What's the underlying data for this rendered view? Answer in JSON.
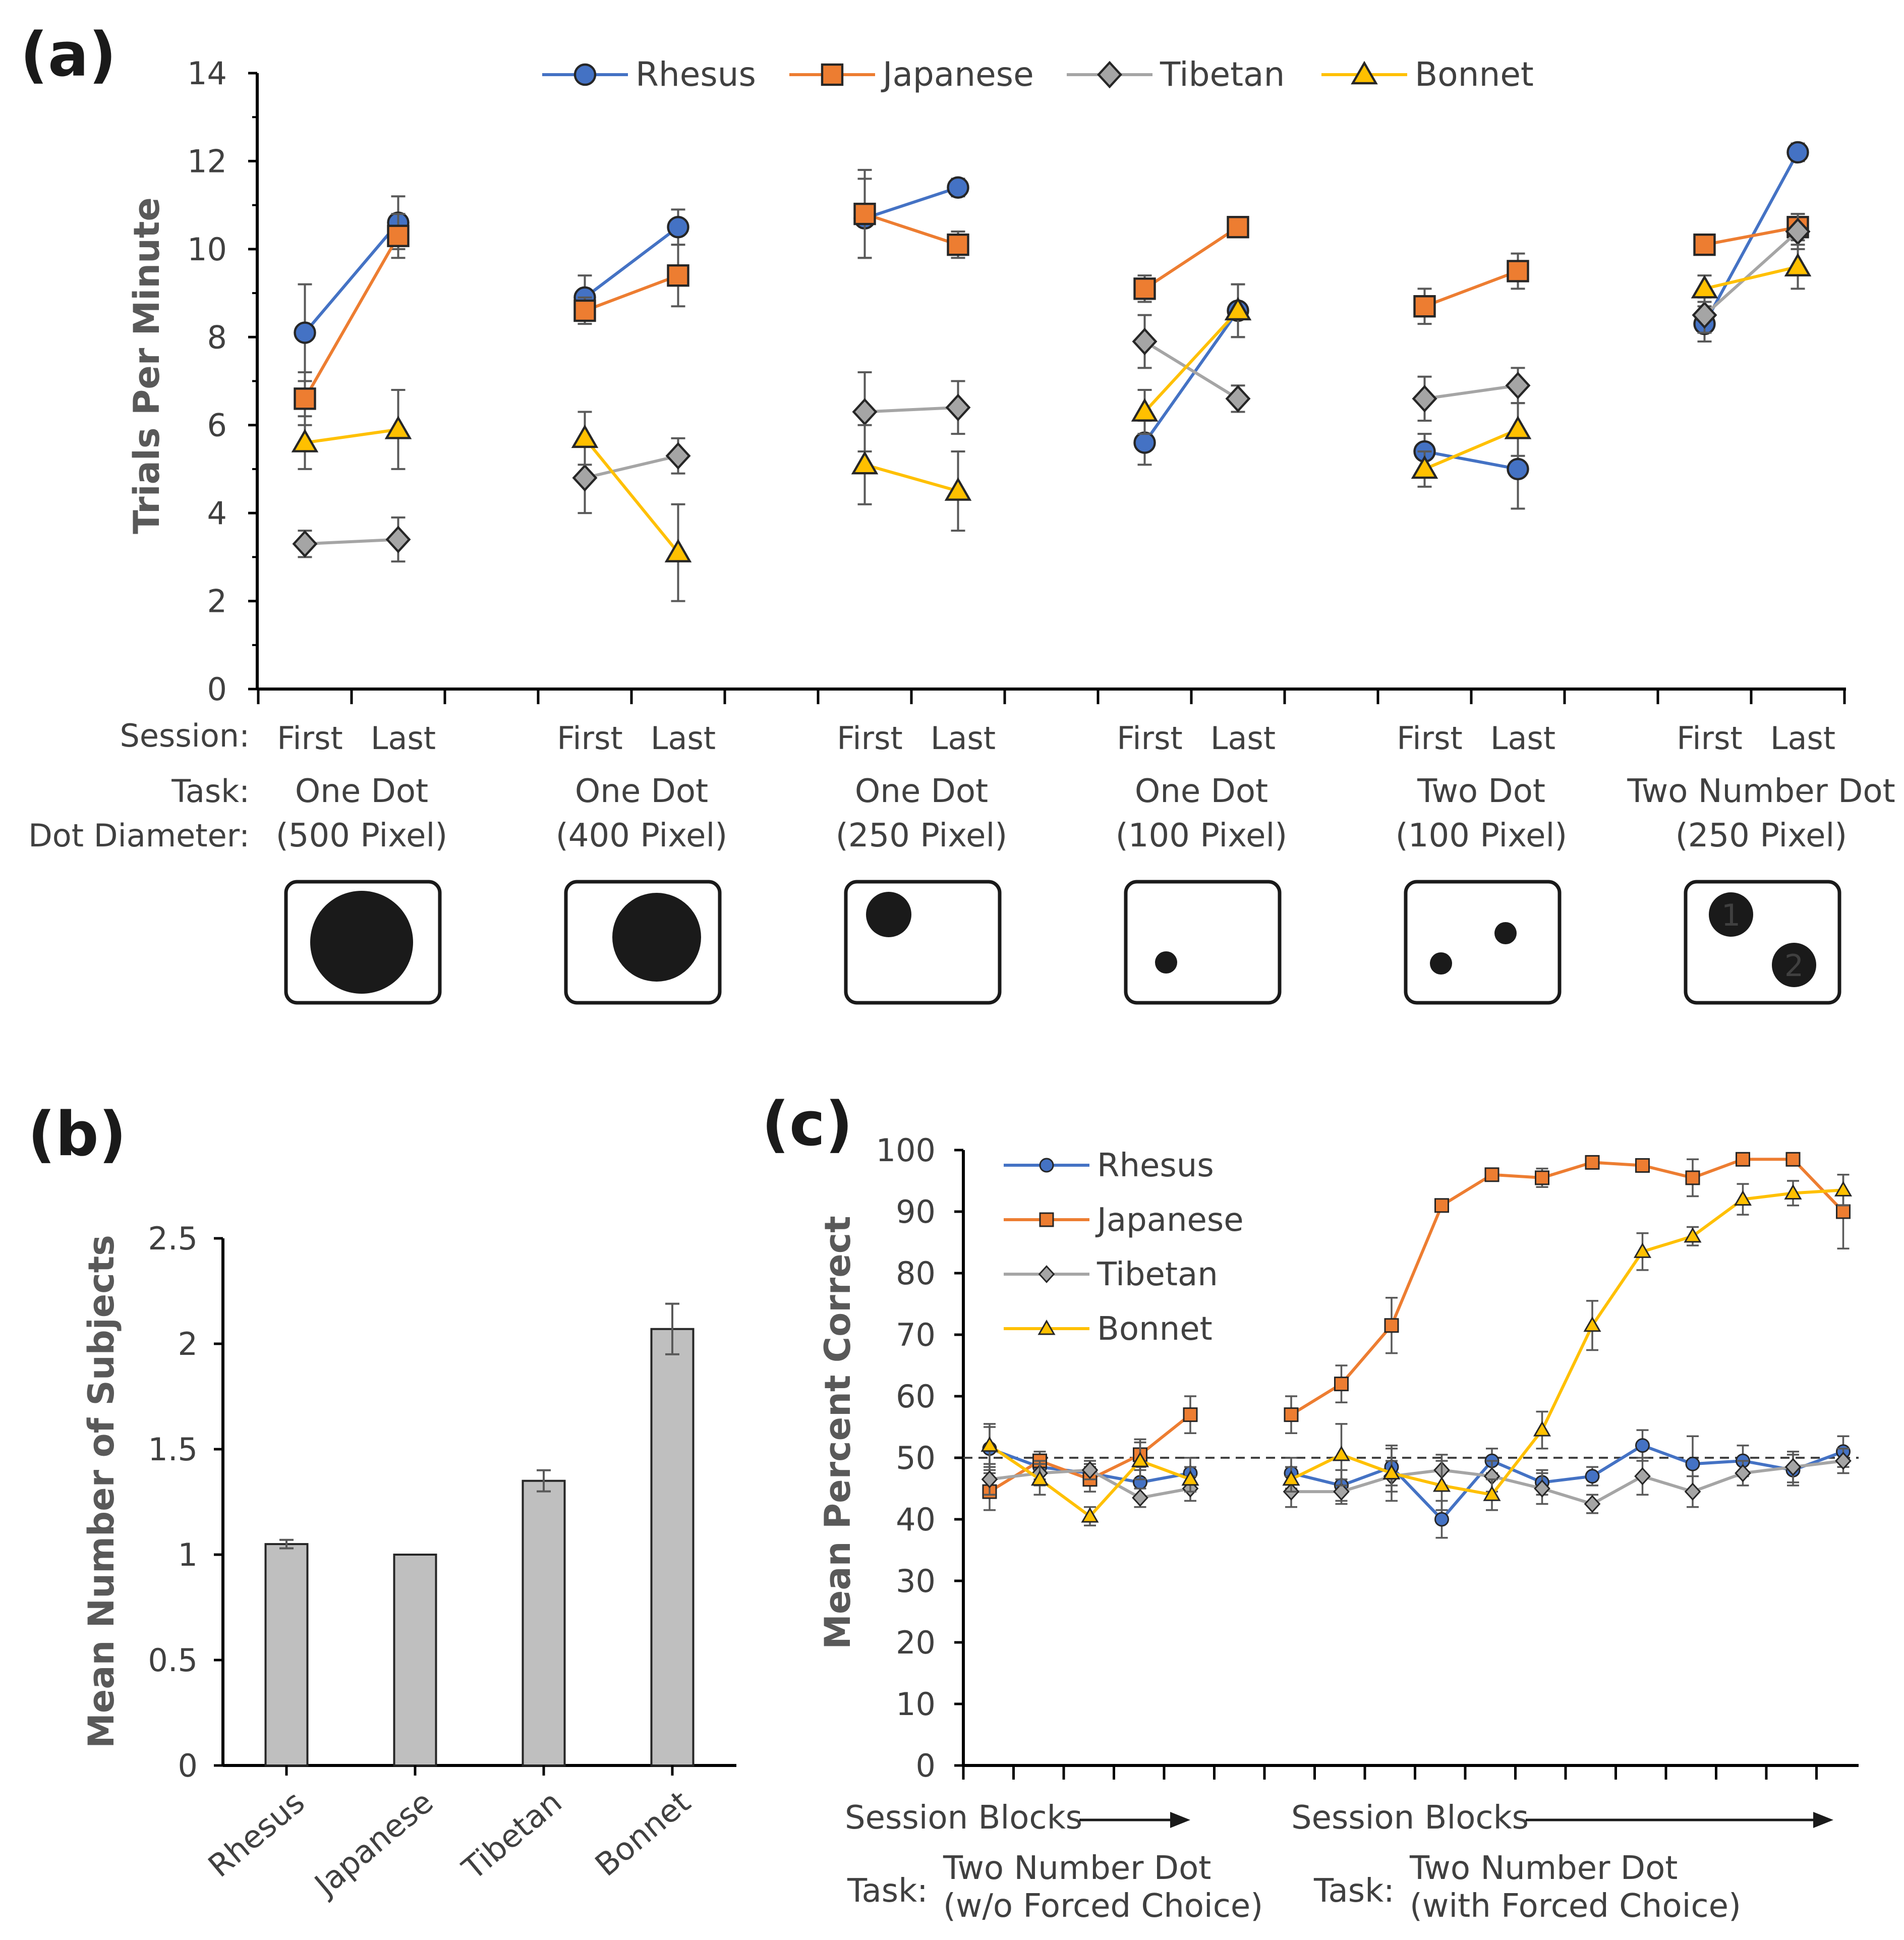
{
  "colors": {
    "rhesus": "#4472C4",
    "japanese": "#ED7D31",
    "tibetan": "#A5A5A5",
    "bonnet": "#FFC000",
    "axis": "#000000",
    "text": "#404040",
    "bar": "#BFBFBF"
  },
  "panel_labels": {
    "a": "(a)",
    "b": "(b)",
    "c": "(c)"
  },
  "panel_a": {
    "row_labels": {
      "session": "Session:",
      "task": "Task:",
      "dot_diameter": "Dot Diameter:"
    },
    "groups": [
      {
        "first": "First",
        "last": "Last",
        "task": "One Dot",
        "diameter": "(500 Pixel)",
        "icon": "one-large-dot"
      },
      {
        "first": "First",
        "last": "Last",
        "task": "One Dot",
        "diameter": "(400 Pixel)",
        "icon": "one-dot-400"
      },
      {
        "first": "First",
        "last": "Last",
        "task": "One Dot",
        "diameter": "(250 Pixel)",
        "icon": "one-dot-250"
      },
      {
        "first": "First",
        "last": "Last",
        "task": "One Dot",
        "diameter": "(100 Pixel)",
        "icon": "one-dot-100"
      },
      {
        "first": "First",
        "last": "Last",
        "task": "Two Dot",
        "diameter": "(100 Pixel)",
        "icon": "two-dot-100"
      },
      {
        "first": "First",
        "last": "Last",
        "task": "Two Number Dot",
        "diameter": "(250 Pixel)",
        "icon": "two-number-dot",
        "numbers": [
          "1",
          "2"
        ]
      }
    ]
  },
  "panel_c": {
    "xlabel_left": "Session Blocks",
    "xlabel_right": "Session Blocks",
    "task_label": "Task:",
    "task_left": [
      "Two Number Dot",
      "(w/o Forced Choice)"
    ],
    "task_right": [
      "Two Number Dot",
      "(with Forced Choice)"
    ]
  },
  "chart_data": [
    {
      "id": "a",
      "type": "line",
      "ylabel": "Trials Per Minute",
      "ylim": [
        0,
        14
      ],
      "yticks": [
        0,
        2,
        4,
        6,
        8,
        10,
        12,
        14
      ],
      "legend": [
        "Rhesus",
        "Japanese",
        "Tibetan",
        "Bonnet"
      ],
      "categories": [
        "First",
        "Last"
      ],
      "series": [
        {
          "name": "Rhesus",
          "marker": "circle",
          "values": [
            [
              8.1,
              10.6
            ],
            [
              8.9,
              10.5
            ],
            [
              10.7,
              11.4
            ],
            [
              5.6,
              8.6
            ],
            [
              5.4,
              5.0
            ],
            [
              8.3,
              12.2
            ]
          ],
          "errors": [
            [
              1.1,
              0.6
            ],
            [
              0.5,
              0.4
            ],
            [
              0.9,
              0.2
            ],
            [
              0.5,
              0.6
            ],
            [
              0.4,
              0.9
            ],
            [
              0.4,
              0.2
            ]
          ]
        },
        {
          "name": "Japanese",
          "marker": "square",
          "values": [
            [
              6.6,
              10.3
            ],
            [
              8.6,
              9.4
            ],
            [
              10.8,
              10.1
            ],
            [
              9.1,
              10.5
            ],
            [
              8.7,
              9.5
            ],
            [
              10.1,
              10.5
            ]
          ],
          "errors": [
            [
              0.6,
              0.5
            ],
            [
              0.3,
              0.7
            ],
            [
              1.0,
              0.3
            ],
            [
              0.3,
              0.2
            ],
            [
              0.4,
              0.4
            ],
            [
              0.2,
              0.3
            ]
          ]
        },
        {
          "name": "Tibetan",
          "marker": "diamond",
          "values": [
            [
              3.3,
              3.4
            ],
            [
              4.8,
              5.3
            ],
            [
              6.3,
              6.4
            ],
            [
              7.9,
              6.6
            ],
            [
              6.6,
              6.9
            ],
            [
              8.5,
              10.4
            ]
          ],
          "errors": [
            [
              0.3,
              0.5
            ],
            [
              0.8,
              0.4
            ],
            [
              0.9,
              0.6
            ],
            [
              0.6,
              0.3
            ],
            [
              0.5,
              0.4
            ],
            [
              0.4,
              0.4
            ]
          ]
        },
        {
          "name": "Bonnet",
          "marker": "triangle",
          "values": [
            [
              5.6,
              5.9
            ],
            [
              5.7,
              3.1
            ],
            [
              5.1,
              4.5
            ],
            [
              6.3,
              8.6
            ],
            [
              5.0,
              5.9
            ],
            [
              9.1,
              9.6
            ]
          ],
          "errors": [
            [
              0.6,
              0.9
            ],
            [
              0.6,
              1.1
            ],
            [
              0.9,
              0.9
            ],
            [
              0.5,
              0.6
            ],
            [
              0.4,
              0.6
            ],
            [
              0.3,
              0.5
            ]
          ]
        }
      ]
    },
    {
      "id": "b",
      "type": "bar",
      "ylabel": "Mean Number of Subjects",
      "ylim": [
        0,
        2.5
      ],
      "yticks": [
        0,
        0.5,
        1,
        1.5,
        2,
        2.5
      ],
      "categories": [
        "Rhesus",
        "Japanese",
        "Tibetan",
        "Bonnet"
      ],
      "values": [
        1.05,
        1.0,
        1.35,
        2.07
      ],
      "errors": [
        0.02,
        0.0,
        0.05,
        0.12
      ]
    },
    {
      "id": "c",
      "type": "line",
      "ylabel": "Mean Percent Correct",
      "ylim": [
        0,
        100
      ],
      "yticks": [
        0,
        10,
        20,
        30,
        40,
        50,
        60,
        70,
        80,
        90,
        100
      ],
      "chance_line": 50,
      "legend": [
        "Rhesus",
        "Japanese",
        "Tibetan",
        "Bonnet"
      ],
      "left_blocks": 5,
      "right_blocks": 12,
      "series": [
        {
          "name": "Rhesus",
          "marker": "circle",
          "left": [
            51.5,
            48.5,
            47.5,
            46,
            47.5
          ],
          "left_err": [
            3.5,
            2,
            1.5,
            2.5,
            2.5
          ],
          "right": [
            47.5,
            45.5,
            48.5,
            40,
            49.5,
            46,
            47,
            52,
            49,
            49.5,
            48,
            51
          ],
          "right_err": [
            2.5,
            2.5,
            3,
            3,
            2,
            2,
            1.5,
            2.5,
            4.5,
            2.5,
            2.5,
            2.5
          ]
        },
        {
          "name": "Japanese",
          "marker": "square",
          "left": [
            44.5,
            49.5,
            46.5,
            50.5,
            57
          ],
          "left_err": [
            3,
            1.5,
            2,
            2.5,
            3
          ],
          "right": [
            57,
            62,
            71.5,
            91,
            96,
            95.5,
            98,
            97.5,
            95.5,
            98.5,
            98.5,
            90
          ],
          "right_err": [
            3,
            3,
            4.5,
            1,
            1,
            1.5,
            1,
            1,
            3,
            1,
            1,
            6
          ]
        },
        {
          "name": "Tibetan",
          "marker": "diamond",
          "left": [
            46.5,
            47.5,
            48,
            43.5,
            45
          ],
          "left_err": [
            2.5,
            2,
            1.5,
            1.5,
            2
          ],
          "right": [
            44.5,
            44.5,
            47,
            48,
            47,
            45,
            42.5,
            47,
            44.5,
            47.5,
            48.5,
            49.5
          ],
          "right_err": [
            2.5,
            2,
            2.5,
            2.5,
            2.5,
            2.5,
            1.5,
            3,
            2.5,
            2,
            2.5,
            2
          ]
        },
        {
          "name": "Bonnet",
          "marker": "triangle",
          "left": [
            52,
            46.5,
            40.5,
            49.5,
            46.5
          ],
          "left_err": [
            3.5,
            2.5,
            1.5,
            3,
            2
          ],
          "right": [
            46.5,
            50.5,
            47.5,
            45.5,
            44,
            54.5,
            71.5,
            83.5,
            86,
            92,
            93,
            93.5
          ],
          "right_err": [
            2,
            5,
            4.5,
            4,
            2.5,
            3,
            4,
            3,
            1.5,
            2.5,
            2,
            2.5
          ]
        }
      ]
    }
  ]
}
